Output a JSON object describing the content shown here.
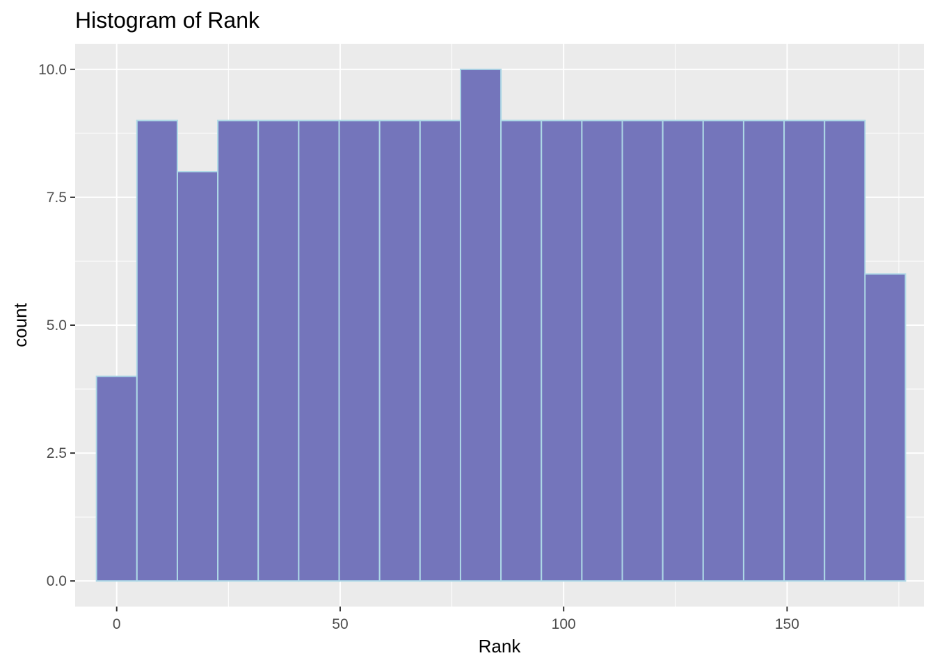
{
  "chart_data": {
    "type": "bar",
    "subtype": "histogram",
    "title": "Histogram of Rank",
    "xlabel": "Rank",
    "ylabel": "count",
    "xlim": [
      -9.3,
      180.6
    ],
    "ylim": [
      -0.5,
      10.5
    ],
    "x_ticks": [
      0,
      50,
      100,
      150
    ],
    "x_tick_labels": [
      "0",
      "50",
      "100",
      "150"
    ],
    "y_ticks": [
      0,
      2.5,
      5,
      7.5,
      10
    ],
    "y_tick_labels": [
      "0.0",
      "2.5",
      "5.0",
      "7.5",
      "10.0"
    ],
    "bin_width": 9.05,
    "bins_start": [
      -4.525,
      4.525,
      13.575,
      22.625,
      31.675,
      40.725,
      49.775,
      58.825,
      67.875,
      76.925,
      85.975,
      95.025,
      104.075,
      113.125,
      122.175,
      131.225,
      140.275,
      149.325,
      158.375,
      167.425
    ],
    "values": [
      4,
      9,
      8,
      9,
      9,
      9,
      9,
      9,
      9,
      10,
      9,
      9,
      9,
      9,
      9,
      9,
      9,
      9,
      9,
      6
    ],
    "grid": true,
    "colors": {
      "bar_fill": "#7475bb",
      "bar_outline": "#add8e6",
      "panel_background": "#ebebeb",
      "grid_line": "#ffffff"
    }
  }
}
